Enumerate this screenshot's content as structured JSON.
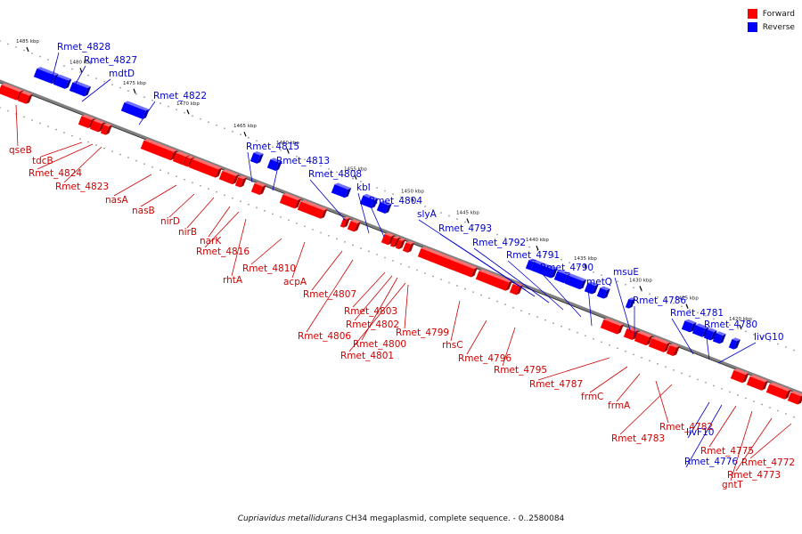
{
  "figure": {
    "caption_species": "Cupriavidus metallidurans",
    "caption_rest": " CH34 megaplasmid, complete sequence. - 0..2580084"
  },
  "legend": {
    "items": [
      {
        "label": "Forward",
        "color": "#ff0000"
      },
      {
        "label": "Reverse",
        "color": "#0000ff"
      }
    ]
  },
  "colors": {
    "forward": "#ff0000",
    "forward_dark": "#a00000",
    "forward_light": "#ff7070",
    "reverse": "#0000ff",
    "reverse_dark": "#0000a0",
    "reverse_light": "#7070ff",
    "backbone": "#808080",
    "backbone_dark": "#333333",
    "forward_label": "#cc0000",
    "reverse_label": "#0000cc"
  },
  "scale_ticks": [
    "1485 kbp",
    "1480 kbp",
    "1475 kbp",
    "1470 kbp",
    "1465 kbp",
    "1460 kbp",
    "1455 kbp",
    "1450 kbp",
    "1445 kbp",
    "1440 kbp",
    "1435 kbp",
    "1430 kbp",
    "1425 kbp",
    "1420 kbp"
  ],
  "reverse_labels": [
    "Rmet_4828",
    "Rmet_4827",
    "mdtD",
    "Rmet_4822",
    "Rmet_4815",
    "Rmet_4813",
    "Rmet_4808",
    "kbl",
    "Rmet_4804",
    "slyA",
    "Rmet_4793",
    "Rmet_4792",
    "Rmet_4791",
    "Rmet_4790",
    "metQ",
    "msuE",
    "Rmet_4786",
    "Rmet_4781",
    "Rmet_4780",
    "livG10",
    "livF10",
    "Rmet_4776"
  ],
  "forward_labels": [
    "qseB",
    "tdcB",
    "Rmet_4824",
    "Rmet_4823",
    "nasA",
    "nasB",
    "nirD",
    "nirB",
    "narK",
    "Rmet_4816",
    "rhtA",
    "Rmet_4810",
    "acpA",
    "Rmet_4807",
    "Rmet_4806",
    "Rmet_4803",
    "Rmet_4802",
    "Rmet_4800",
    "Rmet_4801",
    "Rmet_4799",
    "rhsC",
    "Rmet_4796",
    "Rmet_4795",
    "Rmet_4787",
    "frmC",
    "frmA",
    "Rmet_4782",
    "Rmet_4783",
    "Rmet_4775",
    "gntT",
    "Rmet_4773",
    "Rmet_4772"
  ]
}
